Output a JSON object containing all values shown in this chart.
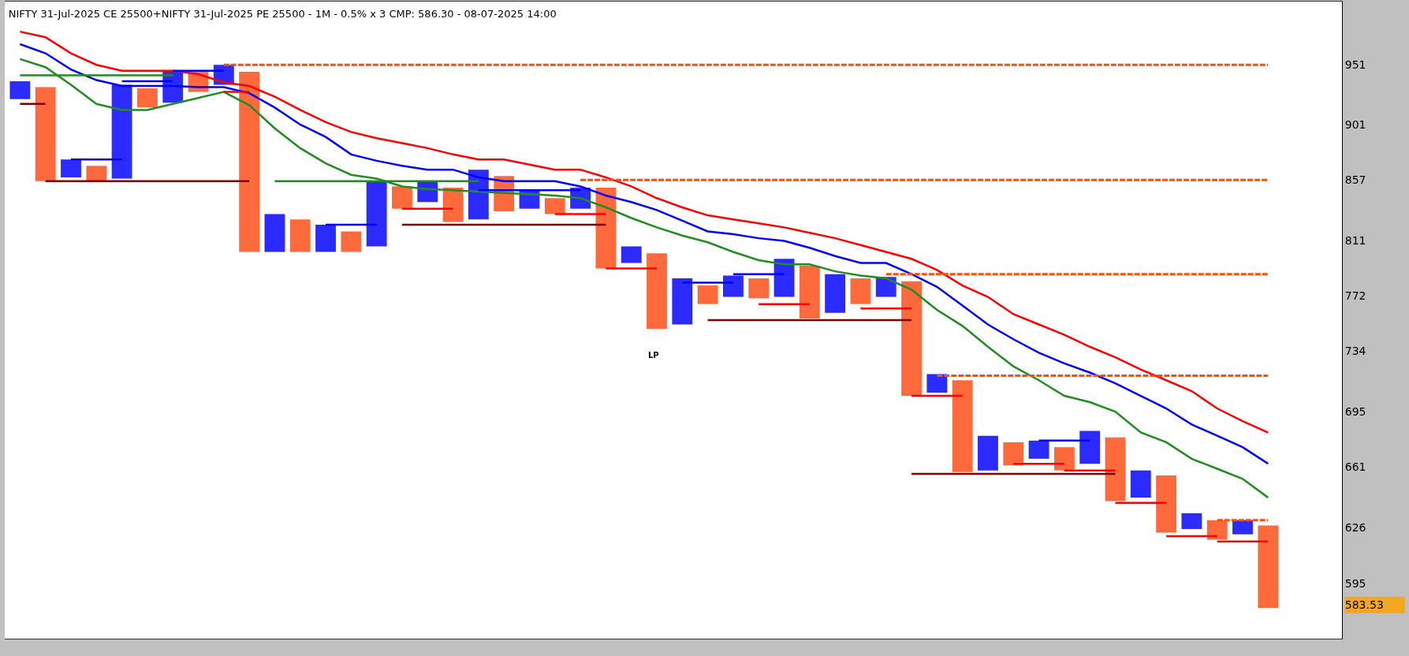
{
  "chart_data": {
    "type": "bar",
    "title": "NIFTY 31-Jul-2025 CE 25500+NIFTY 31-Jul-2025 PE 25500 - 1M - 0.5% x 3 CMP: 586.30 - 08-07-2025 14:00",
    "categories": [
      null,
      null,
      null,
      null,
      null,
      null,
      null,
      null,
      null,
      null,
      null,
      null,
      null,
      null,
      null,
      null,
      null,
      null,
      null,
      null,
      null,
      null,
      null,
      null,
      null,
      null,
      null,
      null,
      null,
      null,
      null,
      null,
      null,
      null,
      null,
      null,
      null,
      null,
      null,
      null,
      null,
      null,
      null,
      null,
      null,
      null,
      null,
      null,
      null,
      null
    ],
    "ylim": [
      566,
      1007
    ],
    "yticks": [
      {
        "value": 583.53,
        "label": "583.53"
      },
      595,
      626,
      661,
      695,
      734,
      772,
      811,
      857,
      901,
      951
    ],
    "log": true,
    "grid": false,
    "annotations": [
      "LP"
    ],
    "series": [
      {
        "base": [
          922,
          856,
          859,
          856,
          858,
          915,
          919,
          928,
          934,
          803,
          803,
          803,
          803,
          803,
          807,
          835,
          840,
          825,
          827,
          833,
          835,
          831,
          835,
          791,
          795,
          749,
          752,
          766,
          771,
          770,
          771,
          756,
          760,
          766,
          771,
          705,
          707,
          658,
          659,
          662,
          666,
          659,
          663,
          641,
          643,
          623,
          625,
          619,
          622,
          582
        ],
        "values": [
          15,
          76,
          14,
          12,
          76,
          16,
          27,
          17,
          17,
          142,
          28,
          24,
          20,
          15,
          49,
          17,
          16,
          26,
          38,
          27,
          14,
          12,
          16,
          60,
          12,
          53,
          32,
          13,
          15,
          14,
          27,
          37,
          27,
          18,
          14,
          77,
          12,
          57,
          21,
          14,
          11,
          14,
          20,
          38,
          16,
          33,
          9,
          11,
          8,
          45
        ],
        "colors": [
          "#2b2bff",
          "#ff6a3d",
          "#2b2bff",
          "#ff6a3d",
          "#2b2bff",
          "#ff6a3d",
          "#2b2bff",
          "#ff6a3d",
          "#2b2bff",
          "#ff6a3d",
          "#2b2bff",
          "#ff6a3d",
          "#2b2bff",
          "#ff6a3d",
          "#2b2bff",
          "#ff6a3d",
          "#2b2bff",
          "#ff6a3d",
          "#2b2bff",
          "#ff6a3d",
          "#2b2bff",
          "#ff6a3d",
          "#2b2bff",
          "#ff6a3d",
          "#2b2bff",
          "#ff6a3d",
          "#2b2bff",
          "#ff6a3d",
          "#2b2bff",
          "#ff6a3d",
          "#2b2bff",
          "#ff6a3d",
          "#2b2bff",
          "#ff6a3d",
          "#2b2bff",
          "#ff6a3d",
          "#2b2bff",
          "#ff6a3d",
          "#2b2bff",
          "#ff6a3d",
          "#2b2bff",
          "#ff6a3d",
          "#2b2bff",
          "#ff6a3d",
          "#2b2bff",
          "#ff6a3d",
          "#2b2bff",
          "#ff6a3d",
          "#2b2bff",
          "#ff6a3d"
        ]
      },
      {
        "type": "line",
        "color": "#ff0000",
        "values": [
          980,
          975,
          961,
          951,
          946,
          946,
          946,
          943,
          936,
          933,
          924,
          913,
          903,
          895,
          890,
          886,
          882,
          877,
          873,
          873,
          869,
          865,
          865,
          859,
          852,
          843,
          836,
          830,
          827,
          824,
          821,
          817,
          813,
          808,
          803,
          798,
          790,
          779,
          771,
          759,
          752,
          745,
          737,
          730,
          722,
          715,
          708,
          697,
          689,
          682
        ]
      },
      {
        "type": "line",
        "color": "#0000ff",
        "values": [
          969,
          961,
          947,
          938,
          933,
          933,
          933,
          932,
          932,
          927,
          915,
          901,
          891,
          877,
          872,
          868,
          865,
          865,
          859,
          856,
          856,
          856,
          852,
          845,
          840,
          834,
          826,
          818,
          816,
          813,
          811,
          806,
          800,
          795,
          795,
          787,
          778,
          765,
          752,
          742,
          733,
          726,
          720,
          713,
          705,
          697,
          687,
          680,
          673,
          663
        ]
      },
      {
        "type": "line",
        "color": "#228b22",
        "values": [
          956,
          949,
          934,
          918,
          913,
          913,
          918,
          923,
          928,
          917,
          898,
          882,
          870,
          861,
          858,
          852,
          850,
          849,
          848,
          847,
          846,
          845,
          843,
          836,
          828,
          821,
          815,
          810,
          803,
          797,
          794,
          794,
          789,
          786,
          784,
          776,
          762,
          751,
          737,
          724,
          715,
          705,
          701,
          695,
          682,
          676,
          666,
          660,
          654,
          643
        ]
      },
      {
        "type": "line",
        "color": "#800000",
        "values": [
          918,
          918,
          null,
          null,
          null,
          null,
          null,
          null,
          null,
          null,
          null,
          null,
          null,
          null,
          null,
          823,
          823,
          823,
          823,
          823,
          823,
          823,
          823,
          823,
          null,
          null,
          null,
          null,
          null,
          null,
          null,
          null,
          null,
          null,
          null,
          657,
          657,
          657,
          657,
          657,
          657,
          657,
          657,
          657,
          null,
          null,
          null,
          null,
          null,
          null
        ]
      },
      {
        "type": "line",
        "color": "#800000",
        "values": [
          null,
          856,
          856,
          856,
          856,
          856,
          856,
          856,
          856,
          856,
          null,
          null,
          null,
          null,
          null,
          null,
          null,
          null,
          null,
          null,
          null,
          null,
          null,
          null,
          null,
          null,
          null,
          755,
          755,
          755,
          755,
          755,
          755,
          755,
          755,
          755,
          null,
          null,
          null,
          null,
          null,
          null,
          null,
          null,
          null,
          null,
          null,
          null,
          null,
          null
        ]
      },
      {
        "type": "line",
        "color": "#ff0000",
        "values": [
          null,
          null,
          null,
          null,
          null,
          null,
          null,
          null,
          928,
          928,
          null,
          null,
          null,
          null,
          null,
          835,
          835,
          835,
          null,
          null,
          null,
          831,
          831,
          831,
          null,
          null,
          null,
          null,
          null,
          766,
          766,
          766,
          null,
          763,
          763,
          763,
          null,
          null,
          null,
          663,
          663,
          663,
          null,
          640,
          640,
          640,
          null,
          618,
          618,
          618
        ]
      },
      {
        "type": "line",
        "color": "#ff0000",
        "values": [
          null,
          null,
          null,
          null,
          null,
          null,
          null,
          null,
          null,
          null,
          null,
          null,
          null,
          null,
          null,
          null,
          null,
          null,
          null,
          null,
          null,
          null,
          null,
          791,
          791,
          791,
          null,
          null,
          null,
          null,
          null,
          null,
          null,
          null,
          null,
          705,
          705,
          705,
          null,
          null,
          null,
          659,
          659,
          659,
          null,
          621,
          621,
          621,
          null,
          null
        ]
      },
      {
        "type": "line",
        "color": "#0000ff",
        "values": [
          null,
          null,
          873,
          873,
          873,
          null,
          946,
          946,
          946,
          null,
          null,
          null,
          823,
          823,
          823,
          null,
          null,
          null,
          849,
          849,
          849,
          849,
          849,
          null,
          null,
          null,
          781,
          781,
          781,
          null,
          null,
          null,
          null,
          null,
          null,
          null,
          null,
          null,
          null,
          null,
          677,
          677,
          677,
          null,
          null,
          null,
          null,
          null,
          null,
          null
        ]
      },
      {
        "type": "line",
        "color": "#0000ff",
        "values": [
          null,
          null,
          null,
          null,
          937,
          937,
          937,
          null,
          null,
          null,
          null,
          null,
          null,
          null,
          null,
          null,
          null,
          null,
          null,
          null,
          null,
          null,
          null,
          null,
          null,
          null,
          null,
          null,
          787,
          787,
          787,
          null,
          null,
          null,
          null,
          null,
          null,
          null,
          null,
          null,
          null,
          null,
          null,
          null,
          null,
          null,
          null,
          null,
          null,
          null
        ]
      },
      {
        "type": "line",
        "color": "#228b22",
        "values": [
          942,
          942,
          942,
          942,
          942,
          942,
          942,
          null,
          null,
          null,
          856,
          856,
          856,
          856,
          856,
          856,
          856,
          856,
          856,
          null,
          null,
          null,
          null,
          null,
          null,
          null,
          null,
          null,
          null,
          null,
          null,
          null,
          null,
          null,
          null,
          null,
          null,
          null,
          null,
          null,
          null,
          null,
          null,
          null,
          null,
          null,
          null,
          null,
          null,
          null
        ]
      },
      {
        "type": "line",
        "color": "#ff5000",
        "line_style": "dashed",
        "values": [
          null,
          null,
          null,
          null,
          null,
          null,
          null,
          null,
          951,
          951,
          951,
          951,
          951,
          951,
          951,
          951,
          951,
          951,
          951,
          951,
          951,
          951,
          951,
          951,
          951,
          951,
          951,
          951,
          951,
          951,
          951,
          951,
          951,
          951,
          951,
          951,
          951,
          951,
          951,
          951,
          951,
          951,
          951,
          951,
          951,
          951,
          951,
          951,
          951,
          951
        ]
      },
      {
        "type": "line",
        "color": "#ff5000",
        "line_style": "dashed",
        "values": [
          null,
          null,
          null,
          null,
          null,
          null,
          null,
          null,
          null,
          null,
          null,
          null,
          null,
          null,
          null,
          null,
          null,
          null,
          null,
          null,
          null,
          null,
          857,
          857,
          857,
          857,
          857,
          857,
          857,
          857,
          857,
          857,
          857,
          857,
          857,
          857,
          857,
          857,
          857,
          857,
          857,
          857,
          857,
          857,
          857,
          857,
          857,
          857,
          857,
          857
        ]
      },
      {
        "type": "line",
        "color": "#ff5000",
        "line_style": "dashed",
        "values": [
          null,
          null,
          null,
          null,
          null,
          null,
          null,
          null,
          null,
          null,
          null,
          null,
          null,
          null,
          null,
          null,
          null,
          null,
          null,
          null,
          null,
          null,
          null,
          null,
          null,
          null,
          null,
          null,
          null,
          null,
          null,
          null,
          null,
          null,
          787,
          787,
          787,
          787,
          787,
          787,
          787,
          787,
          787,
          787,
          787,
          787,
          787,
          787,
          787,
          787
        ]
      },
      {
        "type": "line",
        "color": "#ff5000",
        "line_style": "dashed",
        "values": [
          null,
          null,
          null,
          null,
          null,
          null,
          null,
          null,
          null,
          null,
          null,
          null,
          null,
          null,
          null,
          null,
          null,
          null,
          null,
          null,
          null,
          null,
          null,
          null,
          null,
          null,
          null,
          null,
          null,
          null,
          null,
          null,
          null,
          null,
          null,
          null,
          718,
          718,
          718,
          718,
          718,
          718,
          718,
          718,
          718,
          718,
          718,
          718,
          718,
          718
        ]
      },
      {
        "type": "line",
        "color": "#ff5000",
        "line_style": "dashed",
        "values": [
          null,
          null,
          null,
          null,
          null,
          null,
          null,
          null,
          null,
          null,
          null,
          null,
          null,
          null,
          null,
          null,
          null,
          null,
          null,
          null,
          null,
          null,
          null,
          null,
          null,
          null,
          null,
          null,
          null,
          null,
          null,
          null,
          null,
          null,
          null,
          null,
          null,
          null,
          null,
          null,
          null,
          null,
          null,
          null,
          null,
          null,
          null,
          630,
          630,
          630
        ]
      }
    ]
  }
}
